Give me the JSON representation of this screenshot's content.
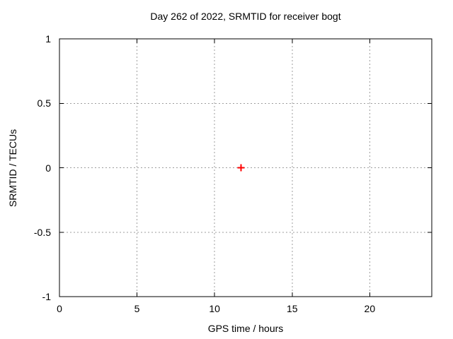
{
  "chart_data": {
    "type": "scatter",
    "title": "Day 262 of 2022, SRMTID for receiver bogt",
    "xlabel": "GPS time / hours",
    "ylabel": "SRMTID / TECUs",
    "xlim": [
      0,
      24
    ],
    "ylim": [
      -1,
      1
    ],
    "xticks": [
      {
        "value": 0,
        "label": "0"
      },
      {
        "value": 5,
        "label": "5"
      },
      {
        "value": 10,
        "label": "10"
      },
      {
        "value": 15,
        "label": "15"
      },
      {
        "value": 20,
        "label": "20"
      }
    ],
    "yticks": [
      {
        "value": -1,
        "label": "-1"
      },
      {
        "value": -0.5,
        "label": "-0.5"
      },
      {
        "value": 0,
        "label": "0"
      },
      {
        "value": 0.5,
        "label": "0.5"
      },
      {
        "value": 1,
        "label": "1"
      }
    ],
    "grid": true,
    "legend": "none",
    "series": [
      {
        "name": "SRMTID",
        "marker": "plus",
        "color": "#ff0000",
        "points": [
          [
            11.7,
            0.0
          ]
        ]
      }
    ],
    "colors": {
      "background": "#ffffff",
      "border": "#000000",
      "grid": "#9e9e9e",
      "text": "#000000"
    }
  }
}
